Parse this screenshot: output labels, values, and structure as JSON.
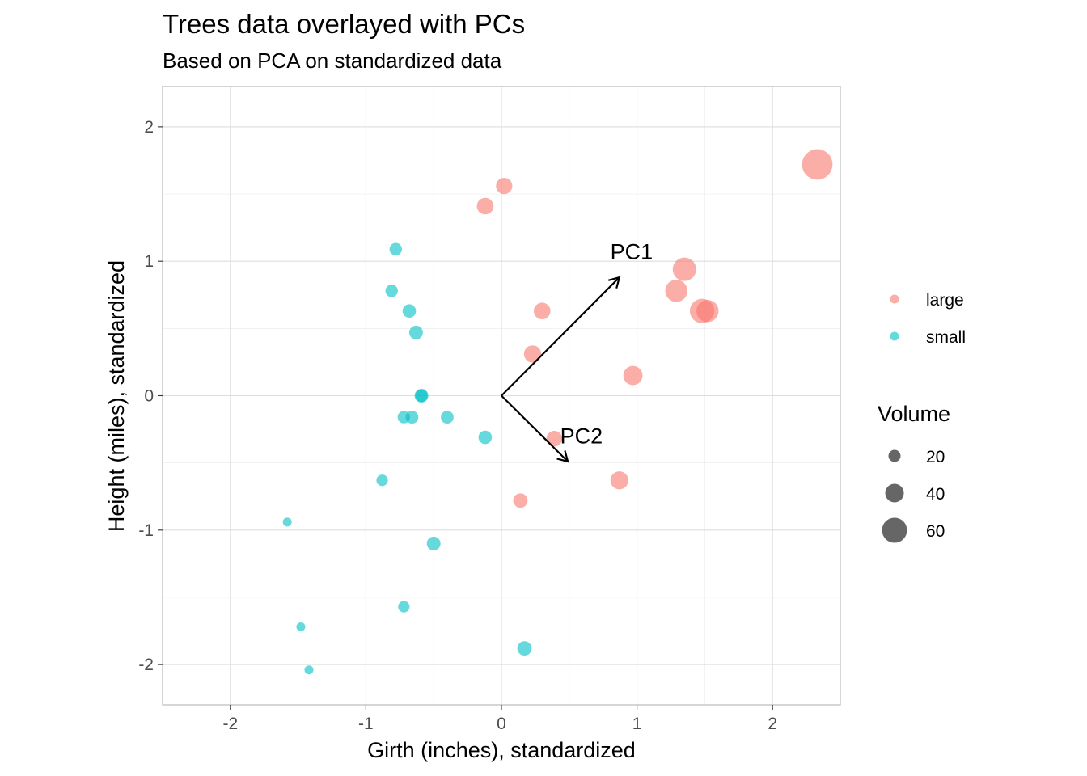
{
  "chart_data": {
    "type": "scatter",
    "title": "Trees data overlayed with PCs",
    "subtitle": "Based on PCA on standardized data",
    "xlabel": "Girth (inches), standardized",
    "ylabel": "Height (miles), standardized",
    "xlim": [
      -2.5,
      2.5
    ],
    "ylim": [
      -2.3,
      2.3
    ],
    "x_ticks": [
      -2,
      -1,
      0,
      1,
      2
    ],
    "y_ticks": [
      -2,
      -1,
      0,
      1,
      2
    ],
    "x_tick_labels": [
      "-2",
      "-1",
      "0",
      "1",
      "2"
    ],
    "y_tick_labels": [
      "-2",
      "-1",
      "0",
      "1",
      "2"
    ],
    "grid": true,
    "legend_position": "right",
    "colors": {
      "large": "#F8766D",
      "small": "#00BFC4",
      "axis": "#b3b3b3",
      "grid": "#ebebeb"
    },
    "color_legend": [
      {
        "label": "large",
        "color": "#F8766D"
      },
      {
        "label": "small",
        "color": "#00BFC4"
      }
    ],
    "size_legend": {
      "title": "Volume",
      "entries": [
        {
          "label": "20",
          "value": 20
        },
        {
          "label": "40",
          "value": 40
        },
        {
          "label": "60",
          "value": 60
        }
      ]
    },
    "series": [
      {
        "name": "large",
        "points": [
          {
            "x": 2.33,
            "y": 1.72,
            "volume": 77
          },
          {
            "x": 0.02,
            "y": 1.56,
            "volume": 33
          },
          {
            "x": -0.12,
            "y": 1.41,
            "volume": 34
          },
          {
            "x": 1.35,
            "y": 0.94,
            "volume": 55
          },
          {
            "x": 1.29,
            "y": 0.78,
            "volume": 51
          },
          {
            "x": 1.48,
            "y": 0.63,
            "volume": 58
          },
          {
            "x": 1.52,
            "y": 0.63,
            "volume": 51
          },
          {
            "x": 0.3,
            "y": 0.63,
            "volume": 34
          },
          {
            "x": 0.23,
            "y": 0.31,
            "volume": 36
          },
          {
            "x": 0.97,
            "y": 0.15,
            "volume": 42
          },
          {
            "x": 0.39,
            "y": -0.32,
            "volume": 31
          },
          {
            "x": 0.87,
            "y": -0.63,
            "volume": 38
          },
          {
            "x": 0.14,
            "y": -0.78,
            "volume": 27
          }
        ]
      },
      {
        "name": "small",
        "points": [
          {
            "x": -0.78,
            "y": 1.09,
            "volume": 21
          },
          {
            "x": -0.81,
            "y": 0.78,
            "volume": 21
          },
          {
            "x": -0.68,
            "y": 0.63,
            "volume": 24
          },
          {
            "x": -0.63,
            "y": 0.47,
            "volume": 25
          },
          {
            "x": -0.59,
            "y": 0.0,
            "volume": 25
          },
          {
            "x": -0.59,
            "y": 0.0,
            "volume": 21
          },
          {
            "x": -0.72,
            "y": -0.16,
            "volume": 21
          },
          {
            "x": -0.66,
            "y": -0.16,
            "volume": 22
          },
          {
            "x": -0.4,
            "y": -0.16,
            "volume": 22
          },
          {
            "x": -0.12,
            "y": -0.31,
            "volume": 24
          },
          {
            "x": -0.88,
            "y": -0.63,
            "volume": 18
          },
          {
            "x": -1.58,
            "y": -0.94,
            "volume": 10
          },
          {
            "x": -0.5,
            "y": -1.1,
            "volume": 25
          },
          {
            "x": -0.72,
            "y": -1.57,
            "volume": 18
          },
          {
            "x": -1.48,
            "y": -1.72,
            "volume": 10
          },
          {
            "x": -1.42,
            "y": -2.04,
            "volume": 10
          },
          {
            "x": 0.17,
            "y": -1.88,
            "volume": 27
          }
        ]
      }
    ],
    "arrows": [
      {
        "label": "PC1",
        "x": 0.87,
        "y": 0.88,
        "label_x": 0.96,
        "label_y": 1.07
      },
      {
        "label": "PC2",
        "x": 0.49,
        "y": -0.49,
        "label_x": 0.59,
        "label_y": -0.3
      }
    ]
  }
}
